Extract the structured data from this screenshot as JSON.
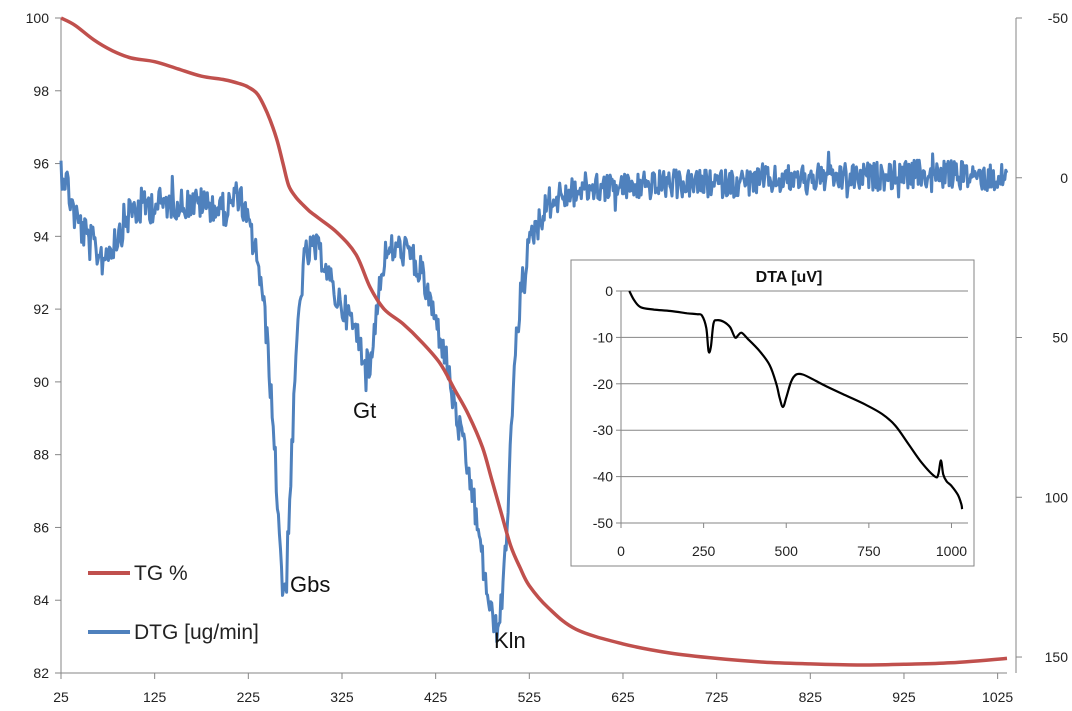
{
  "chart_data": [
    {
      "type": "line",
      "title": "",
      "xlabel": "",
      "xlim": [
        25,
        1035
      ],
      "x_ticks": [
        "25",
        "125",
        "225",
        "325",
        "425",
        "525",
        "625",
        "725",
        "825",
        "925",
        "1025"
      ],
      "y_left": {
        "label": "",
        "lim": [
          82,
          100
        ],
        "ticks": [
          "82",
          "84",
          "86",
          "88",
          "90",
          "92",
          "94",
          "96",
          "98",
          "100"
        ]
      },
      "y_right": {
        "label": "",
        "lim": [
          -50,
          155
        ],
        "reversed": true,
        "ticks": [
          "-50",
          "0",
          "50",
          "100",
          "150"
        ]
      },
      "grid": false,
      "legend": "bottom-left",
      "series": [
        {
          "name": "TG %",
          "axis": "left",
          "color": "#c0504d",
          "x": [
            25,
            40,
            60,
            80,
            100,
            125,
            150,
            175,
            200,
            215,
            225,
            235,
            245,
            255,
            262,
            268,
            275,
            282,
            290,
            300,
            320,
            340,
            355,
            370,
            390,
            410,
            430,
            445,
            460,
            475,
            485,
            495,
            505,
            515,
            525,
            545,
            575,
            625,
            675,
            725,
            775,
            825,
            875,
            925,
            975,
            1035
          ],
          "values": [
            100,
            99.8,
            99.4,
            99.1,
            98.9,
            98.8,
            98.6,
            98.4,
            98.3,
            98.2,
            98.1,
            97.9,
            97.4,
            96.7,
            96.0,
            95.4,
            95.1,
            94.9,
            94.7,
            94.5,
            94.1,
            93.5,
            92.6,
            92.0,
            91.6,
            91.1,
            90.5,
            89.8,
            89.1,
            88.2,
            87.3,
            86.4,
            85.5,
            84.9,
            84.4,
            83.8,
            83.2,
            82.8,
            82.55,
            82.4,
            82.3,
            82.25,
            82.22,
            82.24,
            82.28,
            82.4
          ]
        },
        {
          "name": "DTG [ug/min]",
          "axis": "right",
          "color": "#4f81bd",
          "noisy": true,
          "x": [
            25,
            30,
            40,
            55,
            70,
            85,
            100,
            125,
            150,
            175,
            200,
            215,
            225,
            235,
            245,
            252,
            258,
            262,
            266,
            270,
            278,
            285,
            295,
            305,
            315,
            325,
            335,
            345,
            350,
            355,
            362,
            370,
            380,
            395,
            410,
            425,
            435,
            445,
            455,
            465,
            475,
            485,
            490,
            495,
            500,
            505,
            510,
            518,
            530,
            545,
            565,
            590,
            625,
            675,
            725,
            775,
            825,
            875,
            925,
            975,
            1035
          ],
          "values": [
            -3,
            0,
            12,
            20,
            25,
            18,
            10,
            8,
            8,
            8,
            10,
            5,
            15,
            25,
            50,
            80,
            110,
            130,
            125,
            95,
            45,
            25,
            22,
            25,
            35,
            40,
            45,
            52,
            58,
            60,
            40,
            25,
            22,
            23,
            30,
            45,
            55,
            72,
            85,
            100,
            120,
            138,
            141,
            135,
            115,
            85,
            55,
            30,
            16,
            8,
            5,
            3,
            3,
            2,
            2,
            1,
            0,
            0,
            -1,
            -1,
            0
          ]
        }
      ],
      "annotations": [
        "Gbs",
        "Gt",
        "Kln"
      ]
    },
    {
      "type": "line",
      "title": "DTA [uV]",
      "xlabel": "",
      "ylabel": "",
      "xlim": [
        0,
        1050
      ],
      "ylim": [
        -50,
        0
      ],
      "x_ticks": [
        "0",
        "250",
        "500",
        "750",
        "1000"
      ],
      "y_ticks": [
        "0",
        "-10",
        "-20",
        "-30",
        "-40",
        "-50"
      ],
      "grid": true,
      "legend": "none",
      "series": [
        {
          "color": "#000000",
          "x": [
            25,
            40,
            60,
            100,
            150,
            200,
            230,
            245,
            258,
            265,
            272,
            280,
            290,
            310,
            330,
            345,
            355,
            365,
            385,
            420,
            450,
            470,
            480,
            490,
            500,
            515,
            530,
            550,
            580,
            620,
            680,
            740,
            790,
            830,
            870,
            910,
            950,
            960,
            968,
            975,
            985,
            1000,
            1020,
            1030,
            1032
          ],
          "values": [
            0,
            -2,
            -3.5,
            -4,
            -4.3,
            -4.8,
            -5,
            -5.3,
            -8,
            -13,
            -12,
            -7,
            -6.3,
            -6.6,
            -7.8,
            -10,
            -9.5,
            -9,
            -10.4,
            -13,
            -16,
            -20,
            -23,
            -25,
            -23,
            -19.5,
            -18,
            -18,
            -19,
            -20.5,
            -22.5,
            -24.5,
            -26.5,
            -29,
            -33,
            -37,
            -40,
            -39.5,
            -36.5,
            -39.5,
            -41,
            -42,
            -44,
            -46,
            -47
          ]
        }
      ]
    }
  ]
}
